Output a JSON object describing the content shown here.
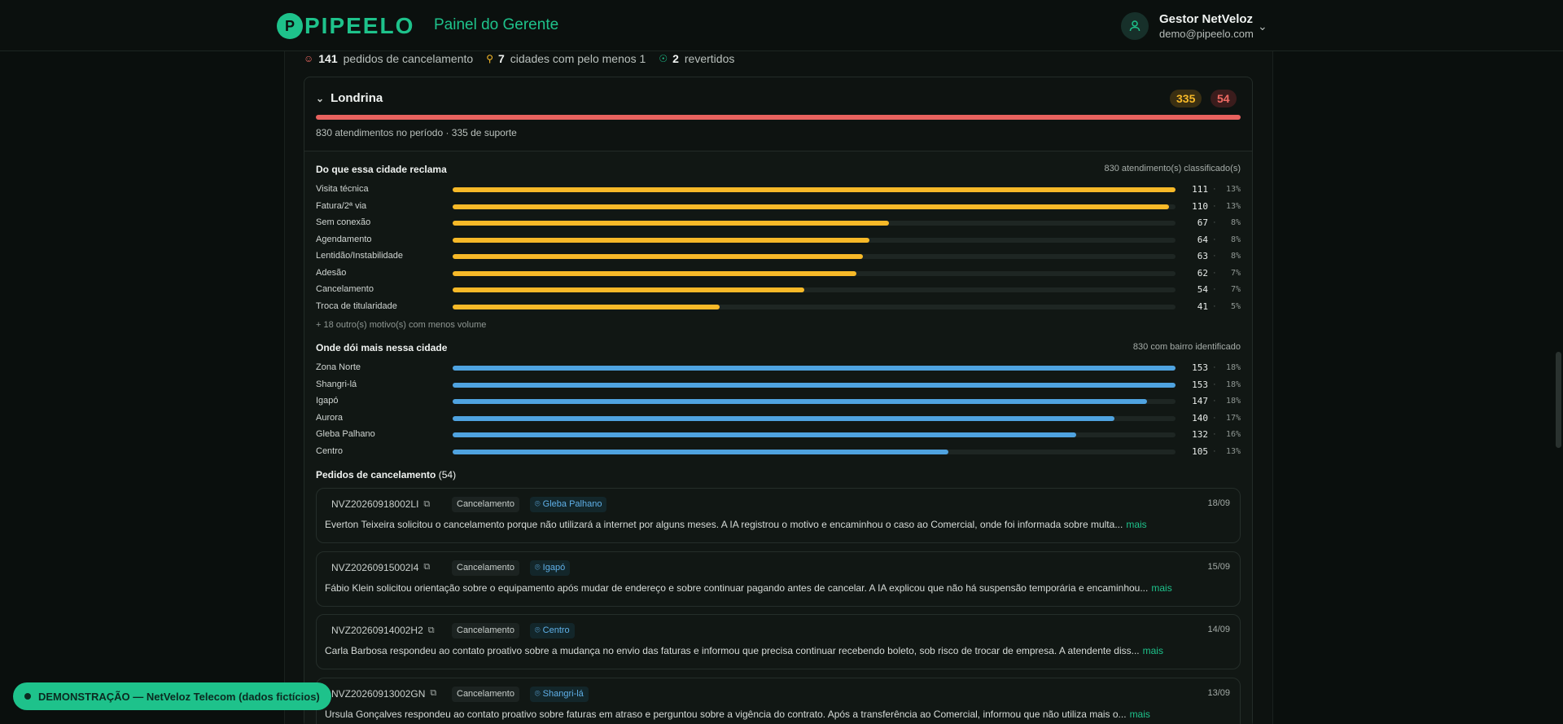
{
  "header": {
    "logo_text": "PIPEELO",
    "panel_title": "Painel do Gerente",
    "user_name": "Gestor NetVeloz",
    "user_email": "demo@pipeelo.com"
  },
  "summary": {
    "pedidos_count": "141",
    "pedidos_label": "pedidos de cancelamento",
    "cidades_count": "7",
    "cidades_label": "cidades com pelo menos 1",
    "revertidos_count": "2",
    "revertidos_label": "revertidos"
  },
  "city": {
    "name": "Londrina",
    "badge_support": "335",
    "badge_cancel": "54",
    "meta": "830 atendimentos no período · 335 de suporte"
  },
  "reclama": {
    "title": "Do que essa cidade reclama",
    "note": "830 atendimento(s) classificado(s)",
    "max": 111,
    "color": "#f7b928",
    "rows": [
      {
        "label": "Visita técnica",
        "count": 111,
        "pct": "13%"
      },
      {
        "label": "Fatura/2ª via",
        "count": 110,
        "pct": "13%"
      },
      {
        "label": "Sem conexão",
        "count": 67,
        "pct": "8%"
      },
      {
        "label": "Agendamento",
        "count": 64,
        "pct": "8%"
      },
      {
        "label": "Lentidão/Instabilidade",
        "count": 63,
        "pct": "8%"
      },
      {
        "label": "Adesão",
        "count": 62,
        "pct": "7%"
      },
      {
        "label": "Cancelamento",
        "count": 54,
        "pct": "7%"
      },
      {
        "label": "Troca de titularidade",
        "count": 41,
        "pct": "5%"
      }
    ],
    "more": "+ 18 outro(s) motivo(s) com menos volume"
  },
  "bairros": {
    "title": "Onde dói mais nessa cidade",
    "note": "830 com bairro identificado",
    "max": 153,
    "color": "#4fa3e0",
    "rows": [
      {
        "label": "Zona Norte",
        "count": 153,
        "pct": "18%"
      },
      {
        "label": "Shangri-lá",
        "count": 153,
        "pct": "18%"
      },
      {
        "label": "Igapó",
        "count": 147,
        "pct": "18%"
      },
      {
        "label": "Aurora",
        "count": 140,
        "pct": "17%"
      },
      {
        "label": "Gleba Palhano",
        "count": 132,
        "pct": "16%"
      },
      {
        "label": "Centro",
        "count": 105,
        "pct": "13%"
      }
    ]
  },
  "pedidos": {
    "title": "Pedidos de cancelamento",
    "count": "(54)",
    "more_label": "mais",
    "items": [
      {
        "id": "NVZ20260918002LI",
        "tag": "Cancelamento",
        "location": "Gleba Palhano",
        "date": "18/09",
        "text": "Everton Teixeira solicitou o cancelamento porque não utilizará a internet por alguns meses. A IA registrou o motivo e encaminhou o caso ao Comercial, onde foi informada sobre multa..."
      },
      {
        "id": "NVZ20260915002I4",
        "tag": "Cancelamento",
        "location": "Igapó",
        "date": "15/09",
        "text": "Fábio Klein solicitou orientação sobre o equipamento após mudar de endereço e sobre continuar pagando antes de cancelar. A IA explicou que não há suspensão temporária e encaminhou..."
      },
      {
        "id": "NVZ20260914002H2",
        "tag": "Cancelamento",
        "location": "Centro",
        "date": "14/09",
        "text": "Carla Barbosa respondeu ao contato proativo sobre a mudança no envio das faturas e informou que precisa continuar recebendo boleto, sob risco de trocar de empresa. A atendente diss..."
      },
      {
        "id": "NVZ20260913002GN",
        "tag": "Cancelamento",
        "location": "Shangri-lá",
        "date": "13/09",
        "text": "Ursula Gonçalves respondeu ao contato proativo sobre faturas em atraso e perguntou sobre a vigência do contrato. Após a transferência ao Comercial, informou que não utiliza mais o..."
      }
    ]
  },
  "demo_banner": "DEMONSTRAÇÃO — NetVeloz Telecom (dados fictícios)"
}
